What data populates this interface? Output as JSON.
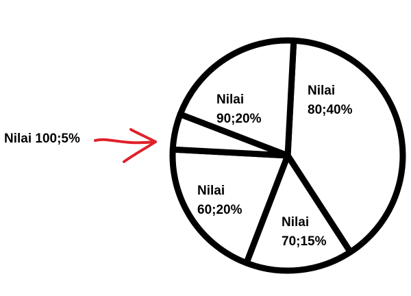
{
  "chart_data": {
    "type": "pie",
    "title": "",
    "categories": [
      "Nilai 80",
      "Nilai 70",
      "Nilai 60",
      "Nilai 100",
      "Nilai 90"
    ],
    "values": [
      40,
      15,
      20,
      5,
      20
    ],
    "unit": "%",
    "labels": [
      {
        "line1": "Nilai",
        "line2": "80;40%"
      },
      {
        "line1": "Nilai",
        "line2": "70;15%"
      },
      {
        "line1": "Nilai",
        "line2": "60;20%"
      },
      {
        "line1": "Nilai 100;5%",
        "line2": ""
      },
      {
        "line1": "Nilai",
        "line2": "90;20%"
      }
    ],
    "legend": "none",
    "colors": {
      "fill": "#ffffff",
      "outline": "#000000",
      "arrow": "#e0202a"
    }
  }
}
